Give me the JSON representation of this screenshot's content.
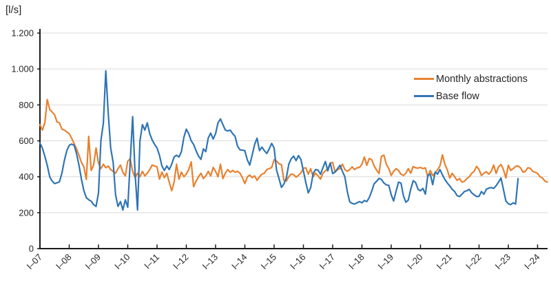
{
  "chart_data": {
    "type": "line",
    "unit_label": "[l/s]",
    "start_period": "I–07",
    "x_tick_labels": [
      "I–07",
      "I–08",
      "I–09",
      "I–10",
      "I–11",
      "I–12",
      "I–13",
      "I–14",
      "I–15",
      "I–16",
      "I–17",
      "I–18",
      "I–19",
      "I–20",
      "I–21",
      "I–22",
      "I–23",
      "I–24"
    ],
    "y_tick_values": [
      0,
      200,
      400,
      600,
      800,
      1000,
      1200
    ],
    "y_tick_labels": [
      "0",
      "200",
      "400",
      "600",
      "800",
      "1.000",
      "1.200"
    ],
    "ylim": [
      0,
      1200
    ],
    "grid": "horizontal",
    "legend_position": "inside-upper-right",
    "axis_color": "#1a1a1a",
    "grid_color": "#d9d9d9",
    "months_per_tick": 12,
    "series": [
      {
        "name": "Monthly abstractions",
        "color": "#E8802E",
        "values": [
          690,
          660,
          700,
          830,
          775,
          760,
          745,
          705,
          700,
          665,
          660,
          650,
          640,
          615,
          585,
          555,
          520,
          480,
          455,
          385,
          625,
          435,
          465,
          560,
          475,
          445,
          470,
          450,
          460,
          440,
          430,
          420,
          445,
          465,
          425,
          405,
          487,
          500,
          430,
          395,
          420,
          400,
          430,
          405,
          420,
          440,
          465,
          460,
          455,
          387,
          426,
          395,
          420,
          370,
          322,
          370,
          470,
          387,
          426,
          400,
          415,
          440,
          483,
          345,
          375,
          400,
          420,
          390,
          405,
          430,
          405,
          452,
          430,
          400,
          470,
          390,
          420,
          440,
          425,
          435,
          425,
          430,
          420,
          395,
          362,
          398,
          410,
          395,
          405,
          380,
          400,
          415,
          420,
          440,
          445,
          452,
          495,
          488,
          472,
          468,
          380,
          376,
          400,
          415,
          412,
          398,
          408,
          422,
          447,
          450,
          414,
          445,
          400,
          420,
          405,
          387,
          420,
          433,
          445,
          476,
          480,
          426,
          440,
          445,
          470,
          440,
          430,
          440,
          455,
          440,
          450,
          452,
          470,
          510,
          464,
          502,
          495,
          460,
          437,
          418,
          514,
          520,
          470,
          445,
          407,
          430,
          445,
          435,
          414,
          407,
          420,
          445,
          420,
          457,
          450,
          448,
          452,
          445,
          450,
          400,
          435,
          407,
          420,
          440,
          460,
          522,
          470,
          438,
          393,
          419,
          400,
          380,
          390,
          370,
          375,
          390,
          400,
          419,
          430,
          458,
          440,
          407,
          420,
          428,
          415,
          430,
          465,
          419,
          455,
          468,
          440,
          393,
          464,
          435,
          445,
          458,
          460,
          450,
          426,
          430,
          450,
          447,
          430,
          425,
          419,
          400,
          393,
          376,
          370
        ]
      },
      {
        "name": "Base flow",
        "color": "#2E74B5",
        "values": [
          587,
          560,
          514,
          464,
          400,
          376,
          362,
          366,
          372,
          420,
          490,
          545,
          575,
          582,
          575,
          530,
          464,
          387,
          322,
          284,
          272,
          264,
          245,
          235,
          310,
          600,
          700,
          990,
          750,
          560,
          480,
          300,
          235,
          262,
          215,
          272,
          230,
          480,
          735,
          420,
          215,
          600,
          690,
          660,
          700,
          640,
          605,
          580,
          560,
          520,
          460,
          435,
          460,
          440,
          470,
          510,
          520,
          510,
          540,
          620,
          665,
          640,
          600,
          580,
          545,
          515,
          497,
          555,
          540,
          617,
          643,
          610,
          640,
          700,
          722,
          690,
          660,
          655,
          660,
          640,
          625,
          570,
          550,
          548,
          545,
          495,
          465,
          520,
          580,
          615,
          545,
          565,
          545,
          530,
          555,
          586,
          560,
          438,
          390,
          341,
          360,
          393,
          470,
          500,
          515,
          490,
          518,
          495,
          433,
          368,
          310,
          340,
          418,
          440,
          437,
          414,
          450,
          485,
          433,
          476,
          418,
          426,
          445,
          464,
          430,
          400,
          317,
          260,
          252,
          248,
          255,
          262,
          255,
          268,
          262,
          284,
          320,
          361,
          375,
          391,
          385,
          365,
          355,
          352,
          300,
          265,
          320,
          370,
          365,
          295,
          258,
          270,
          330,
          378,
          368,
          330,
          322,
          335,
          303,
          407,
          415,
          356,
          426,
          415,
          440,
          410,
          385,
          365,
          349,
          330,
          318,
          295,
          290,
          303,
          318,
          322,
          330,
          310,
          300,
          290,
          291,
          318,
          303,
          330,
          337,
          340,
          335,
          350,
          370,
          393,
          330,
          265,
          250,
          245,
          255,
          248,
          390
        ]
      }
    ]
  },
  "legend": {
    "items": [
      {
        "label": "Monthly abstractions",
        "color": "#E8802E"
      },
      {
        "label": "Base flow",
        "color": "#2E74B5"
      }
    ]
  }
}
